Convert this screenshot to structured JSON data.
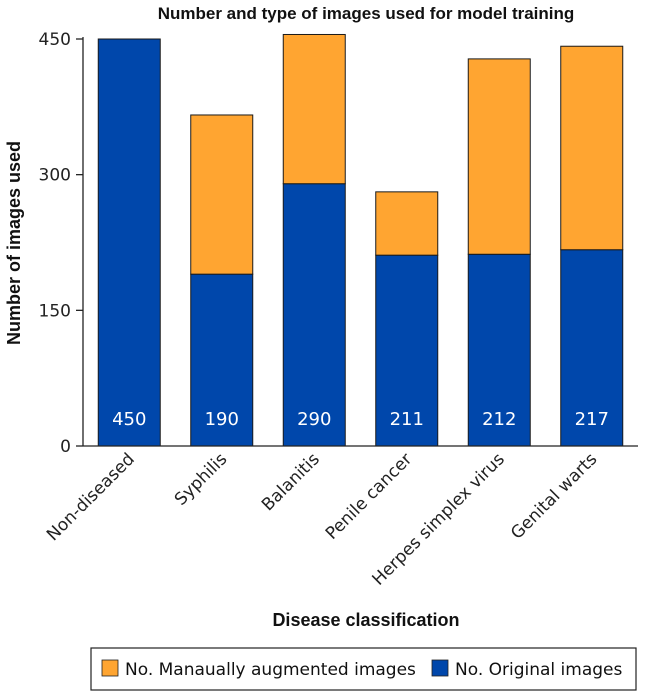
{
  "chart_data": {
    "type": "bar",
    "stacked": true,
    "title": "Number and type of images used for model training",
    "xlabel": "Disease classification",
    "ylabel": "Number of images used",
    "ylim": [
      0,
      450
    ],
    "yticks": [
      0,
      150,
      300,
      450
    ],
    "categories": [
      "Non-diseased",
      "Syphilis",
      "Balanitis",
      "Penile cancer",
      "Herpes simplex virus",
      "Genital warts"
    ],
    "series": [
      {
        "name": "No. Original images",
        "color": "#0047ab",
        "values": [
          450,
          190,
          290,
          211,
          212,
          217
        ]
      },
      {
        "name": "No. Manaually augmented images",
        "color": "#ffa531",
        "values": [
          0,
          176,
          165,
          70,
          216,
          225
        ]
      }
    ],
    "data_labels": [
      "450",
      "190",
      "290",
      "211",
      "212",
      "217"
    ],
    "legend": {
      "position": "bottom",
      "entries": [
        "No. Manaually augmented images",
        "No. Original images"
      ]
    }
  }
}
